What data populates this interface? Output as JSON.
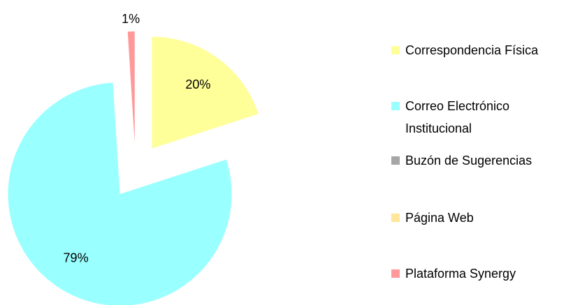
{
  "chart_data": {
    "type": "pie",
    "categories": [
      "Correspondencia Física",
      "Correo Electrónico Institucional",
      "Buzón de Sugerencias",
      "Página Web",
      "Plataforma Synergy"
    ],
    "values": [
      20,
      79,
      0,
      0,
      1
    ],
    "value_labels": [
      "20%",
      "79%",
      null,
      null,
      "1%"
    ],
    "colors": [
      "#ffff99",
      "#99ffff",
      "#a6a6a6",
      "#ffe699",
      "#ff9999"
    ],
    "exploded": true,
    "legend": "right"
  }
}
